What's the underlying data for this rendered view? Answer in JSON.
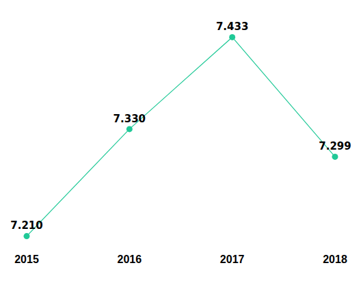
{
  "chart_data": {
    "type": "line",
    "categories": [
      "2015",
      "2016",
      "2017",
      "2018"
    ],
    "values": [
      7.21,
      7.33,
      7.433,
      7.299
    ],
    "value_labels": [
      "7.210",
      "7.330",
      "7.433",
      "7.299"
    ],
    "color": "#20c997",
    "marker": "circle",
    "line_style": "solid",
    "data_labels": true,
    "grid": false,
    "tick_labels": "x"
  }
}
